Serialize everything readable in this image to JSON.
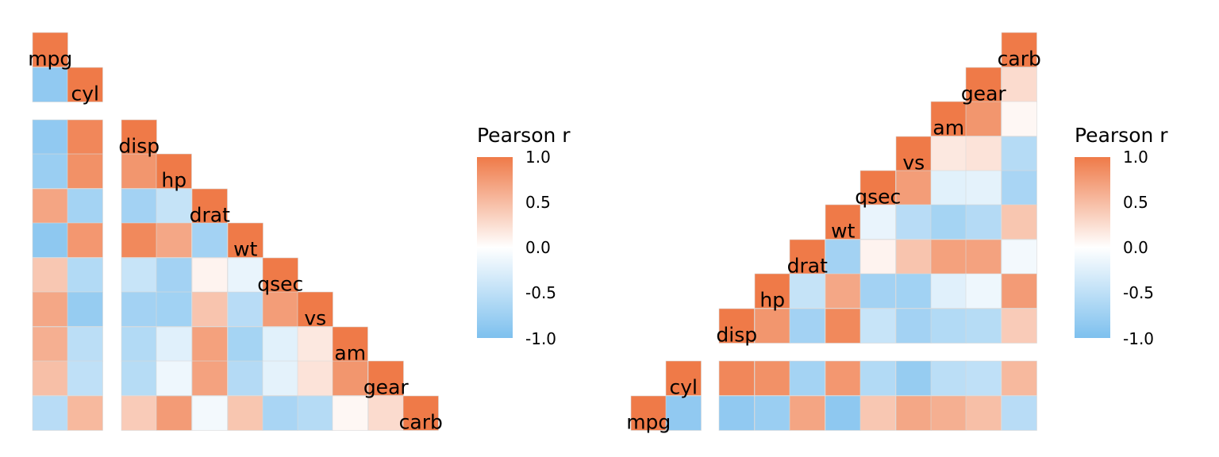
{
  "chart_data": [
    {
      "type": "heatmap",
      "layout": "lower-triangle",
      "variables": [
        "mpg",
        "cyl",
        "disp",
        "hp",
        "drat",
        "wt",
        "qsec",
        "vs",
        "am",
        "gear",
        "carb"
      ],
      "split_after": "cyl",
      "matrix": [
        [
          1.0,
          -0.85,
          -0.85,
          -0.78,
          0.68,
          -0.87,
          0.42,
          0.66,
          0.6,
          0.48,
          -0.55
        ],
        [
          -0.85,
          1.0,
          0.9,
          0.83,
          -0.7,
          0.78,
          -0.59,
          -0.81,
          -0.52,
          -0.49,
          0.53
        ],
        [
          -0.85,
          0.9,
          1.0,
          0.79,
          -0.71,
          0.89,
          -0.43,
          -0.71,
          -0.59,
          -0.56,
          0.39
        ],
        [
          -0.78,
          0.83,
          0.79,
          1.0,
          -0.45,
          0.66,
          -0.71,
          -0.72,
          -0.24,
          -0.13,
          0.75
        ],
        [
          0.68,
          -0.7,
          -0.71,
          -0.45,
          1.0,
          -0.71,
          0.09,
          0.44,
          0.71,
          0.7,
          -0.09
        ],
        [
          -0.87,
          0.78,
          0.89,
          0.66,
          -0.71,
          1.0,
          -0.17,
          -0.55,
          -0.69,
          -0.58,
          0.43
        ],
        [
          0.42,
          -0.59,
          -0.43,
          -0.71,
          0.09,
          -0.17,
          1.0,
          0.74,
          -0.23,
          -0.21,
          -0.66
        ],
        [
          0.66,
          -0.81,
          -0.71,
          -0.72,
          0.44,
          -0.55,
          0.74,
          1.0,
          0.17,
          0.21,
          -0.57
        ],
        [
          0.6,
          -0.52,
          -0.59,
          -0.24,
          0.71,
          -0.69,
          -0.23,
          0.17,
          1.0,
          0.79,
          0.06
        ],
        [
          0.48,
          -0.49,
          -0.56,
          -0.13,
          0.7,
          -0.58,
          -0.21,
          0.21,
          0.79,
          1.0,
          0.27
        ],
        [
          -0.55,
          0.53,
          0.39,
          0.75,
          -0.09,
          0.43,
          -0.66,
          -0.57,
          0.06,
          0.27,
          1.0
        ]
      ],
      "legend": {
        "title": "Pearson r",
        "ticks": [
          "1.0",
          "0.5",
          "0.0",
          "-0.5",
          "-1.0"
        ],
        "range": [
          -1,
          1
        ]
      }
    },
    {
      "type": "heatmap",
      "layout": "upper-triangle",
      "variables": [
        "mpg",
        "cyl",
        "disp",
        "hp",
        "drat",
        "wt",
        "qsec",
        "vs",
        "am",
        "gear",
        "carb"
      ],
      "split_after": "cyl",
      "legend": {
        "title": "Pearson r",
        "ticks": [
          "1.0",
          "0.5",
          "0.0",
          "-0.5",
          "-1.0"
        ],
        "range": [
          -1,
          1
        ]
      }
    }
  ],
  "colors": {
    "positive": "#EF7A48",
    "zero": "#FFFFFF",
    "negative": "#7DC0EE"
  }
}
